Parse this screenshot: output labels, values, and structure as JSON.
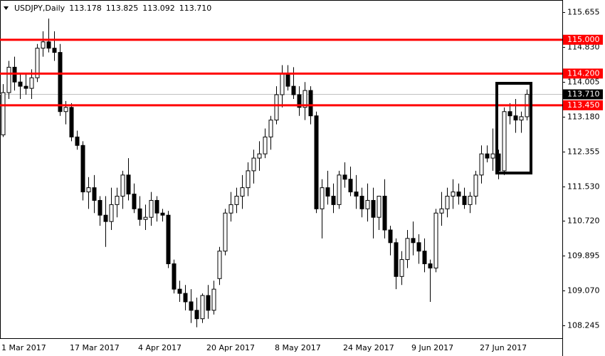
{
  "chart_data": {
    "type": "candlestick",
    "title": "USDJPY,Daily",
    "quote": [
      "113.178",
      "113.825",
      "113.092",
      "113.710"
    ],
    "categories": [
      "1 Mar 2017",
      null,
      null,
      null,
      null,
      null,
      null,
      null,
      null,
      null,
      null,
      null,
      "17 Mar 2017",
      null,
      null,
      null,
      null,
      null,
      null,
      null,
      null,
      null,
      null,
      null,
      "4 Apr 2017",
      null,
      null,
      null,
      null,
      null,
      null,
      null,
      null,
      null,
      null,
      null,
      "20 Apr 2017",
      null,
      null,
      null,
      null,
      null,
      null,
      null,
      null,
      null,
      null,
      null,
      "8 May 2017",
      null,
      null,
      null,
      null,
      null,
      null,
      null,
      null,
      null,
      null,
      null,
      "24 May 2017",
      null,
      null,
      null,
      null,
      null,
      null,
      null,
      null,
      null,
      null,
      null,
      "9 Jun 2017",
      null,
      null,
      null,
      null,
      null,
      null,
      null,
      null,
      null,
      null,
      null,
      "27 Jun 2017",
      null,
      null,
      null,
      null,
      null,
      null,
      null,
      null
    ],
    "open": [
      112.75,
      113.75,
      114.35,
      114.0,
      113.9,
      113.85,
      114.1,
      114.8,
      114.95,
      114.8,
      114.7,
      113.3,
      113.4,
      112.7,
      112.5,
      111.4,
      111.5,
      111.2,
      110.85,
      110.7,
      111.1,
      111.3,
      111.8,
      111.35,
      111.0,
      110.75,
      110.8,
      111.2,
      110.9,
      110.85,
      109.7,
      109.1,
      109.0,
      108.8,
      108.6,
      108.4,
      108.95,
      108.6,
      109.35,
      110.0,
      110.9,
      111.1,
      111.3,
      111.5,
      111.9,
      112.2,
      112.3,
      112.7,
      113.1,
      113.7,
      114.2,
      113.9,
      113.7,
      113.4,
      113.8,
      113.2,
      111.0,
      111.5,
      111.3,
      111.1,
      111.8,
      111.7,
      111.4,
      111.3,
      111.0,
      111.2,
      110.8,
      111.3,
      110.5,
      110.2,
      109.4,
      109.8,
      110.3,
      110.2,
      110.0,
      109.7,
      109.6,
      110.9,
      111.0,
      111.3,
      111.4,
      111.3,
      111.1,
      111.3,
      111.8,
      112.3,
      112.2,
      112.3,
      111.9,
      113.3,
      113.2,
      113.1,
      113.178
    ],
    "high": [
      113.95,
      114.5,
      114.6,
      114.2,
      114.2,
      114.3,
      114.9,
      115.2,
      115.5,
      115.2,
      114.9,
      113.55,
      113.5,
      112.85,
      112.6,
      111.75,
      111.8,
      111.3,
      111.3,
      111.5,
      111.5,
      111.9,
      112.2,
      111.6,
      111.3,
      111.1,
      111.4,
      111.3,
      111.0,
      110.95,
      109.8,
      109.3,
      109.2,
      109.1,
      108.9,
      109.0,
      109.2,
      109.3,
      110.1,
      111.0,
      111.4,
      111.5,
      111.8,
      112.1,
      112.4,
      112.6,
      112.9,
      113.2,
      113.9,
      114.4,
      114.4,
      114.35,
      113.9,
      114.0,
      113.9,
      113.3,
      111.7,
      111.9,
      111.6,
      111.9,
      112.1,
      112.0,
      111.8,
      111.5,
      111.6,
      111.5,
      111.3,
      111.7,
      110.6,
      110.3,
      110.0,
      110.5,
      110.7,
      110.4,
      110.3,
      109.8,
      111.0,
      111.4,
      111.5,
      111.7,
      111.6,
      111.5,
      111.4,
      111.9,
      112.5,
      112.5,
      112.9,
      112.4,
      113.4,
      113.5,
      113.6,
      113.3,
      113.825
    ],
    "low": [
      112.7,
      113.6,
      113.8,
      113.6,
      113.7,
      113.6,
      114.0,
      114.6,
      114.7,
      114.5,
      113.2,
      113.0,
      112.6,
      112.4,
      111.2,
      111.0,
      110.9,
      110.6,
      110.1,
      110.5,
      110.8,
      111.0,
      111.2,
      110.9,
      110.6,
      110.5,
      110.6,
      110.7,
      110.7,
      109.6,
      109.0,
      108.8,
      108.6,
      108.3,
      108.2,
      108.3,
      108.4,
      108.5,
      109.2,
      109.9,
      110.7,
      110.9,
      111.0,
      111.3,
      111.6,
      111.9,
      112.2,
      112.4,
      113.0,
      113.4,
      113.8,
      113.6,
      113.2,
      113.1,
      113.0,
      110.9,
      110.3,
      111.1,
      110.9,
      111.0,
      111.5,
      111.3,
      111.0,
      110.8,
      110.7,
      110.3,
      110.5,
      110.3,
      109.9,
      109.1,
      109.2,
      109.6,
      109.9,
      109.7,
      109.5,
      108.8,
      109.5,
      110.6,
      110.8,
      111.0,
      111.1,
      111.0,
      110.9,
      111.1,
      111.6,
      112.1,
      111.9,
      111.7,
      111.8,
      113.0,
      112.8,
      112.8,
      113.092
    ],
    "close": [
      113.75,
      114.35,
      114.0,
      113.9,
      113.85,
      114.1,
      114.8,
      114.95,
      114.8,
      114.7,
      113.3,
      113.4,
      112.7,
      112.5,
      111.4,
      111.5,
      111.2,
      110.85,
      110.7,
      111.1,
      111.3,
      111.8,
      111.35,
      111.0,
      110.75,
      110.8,
      111.2,
      110.9,
      110.85,
      109.7,
      109.1,
      109.0,
      108.8,
      108.6,
      108.4,
      108.95,
      108.6,
      109.1,
      110.0,
      110.9,
      111.1,
      111.3,
      111.5,
      111.9,
      112.2,
      112.3,
      112.7,
      113.1,
      113.7,
      114.2,
      113.9,
      113.7,
      113.4,
      113.8,
      113.2,
      111.0,
      111.5,
      111.3,
      111.1,
      111.8,
      111.7,
      111.4,
      111.3,
      111.0,
      111.2,
      110.8,
      111.3,
      110.5,
      110.2,
      109.4,
      109.8,
      110.3,
      110.2,
      110.0,
      109.7,
      109.6,
      110.9,
      111.0,
      111.3,
      111.4,
      111.3,
      111.1,
      111.3,
      111.8,
      112.3,
      112.2,
      112.3,
      111.9,
      113.3,
      113.2,
      113.1,
      113.18,
      113.71
    ],
    "up_color": "#ffffff",
    "down_color": "#000000",
    "ylim": [
      107.94,
      115.94
    ],
    "yticks": [
      115.655,
      {
        "value": 114.83,
        "label": "114.830"
      },
      114.005,
      {
        "value": 113.18,
        "label": "113.180"
      },
      112.355,
      {
        "value": 111.53,
        "label": "111.530"
      },
      {
        "value": 110.72,
        "label": "110.720"
      },
      109.895,
      {
        "value": 109.07,
        "label": "109.070"
      },
      108.245
    ],
    "current_price": {
      "value": 113.71,
      "label": "113.710"
    },
    "levels": [
      {
        "value": 115.0,
        "label": "115.000",
        "color": "#ff0000"
      },
      {
        "value": 114.2,
        "label": "114.200",
        "color": "#ff0000"
      },
      {
        "value": 113.45,
        "label": "113.450",
        "color": "#ff0000"
      }
    ]
  }
}
